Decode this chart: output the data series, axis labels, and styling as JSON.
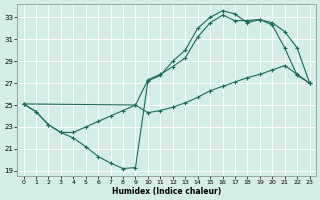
{
  "xlabel": "Humidex (Indice chaleur)",
  "bg_color": "#d4ede6",
  "line_color": "#1a6b5a",
  "xlim": [
    -0.5,
    23.5
  ],
  "ylim": [
    18.5,
    34.2
  ],
  "yticks": [
    19,
    21,
    23,
    25,
    27,
    29,
    31,
    33
  ],
  "xticks": [
    0,
    1,
    2,
    3,
    4,
    5,
    6,
    7,
    8,
    9,
    10,
    11,
    12,
    13,
    14,
    15,
    16,
    17,
    18,
    19,
    20,
    21,
    22,
    23
  ],
  "line1_x": [
    0,
    1,
    2,
    3,
    4,
    5,
    6,
    7,
    8,
    9,
    10,
    11,
    12,
    13,
    14,
    15,
    16,
    17,
    18,
    19,
    20,
    21,
    22,
    23
  ],
  "line1_y": [
    25.1,
    24.4,
    23.2,
    22.5,
    22.0,
    21.2,
    20.3,
    19.7,
    19.2,
    19.3,
    27.2,
    27.7,
    29.0,
    30.0,
    32.0,
    33.0,
    33.6,
    33.3,
    32.5,
    32.8,
    32.3,
    30.2,
    27.7,
    27.0
  ],
  "line2_x": [
    0,
    9,
    10,
    11,
    12,
    13,
    14,
    15,
    16,
    17,
    18,
    19,
    20,
    21,
    22,
    23
  ],
  "line2_y": [
    25.1,
    25.0,
    27.3,
    27.8,
    28.5,
    29.3,
    31.2,
    32.5,
    33.2,
    32.7,
    32.7,
    32.8,
    32.5,
    31.7,
    30.2,
    27.0
  ],
  "line3_x": [
    0,
    1,
    2,
    3,
    4,
    5,
    6,
    7,
    8,
    9,
    10,
    11,
    12,
    13,
    14,
    15,
    16,
    17,
    18,
    19,
    20,
    21,
    22,
    23
  ],
  "line3_y": [
    25.1,
    24.4,
    23.2,
    22.5,
    22.5,
    23.0,
    23.5,
    24.0,
    24.5,
    25.0,
    24.3,
    24.5,
    24.8,
    25.2,
    25.7,
    26.3,
    26.7,
    27.1,
    27.5,
    27.8,
    28.2,
    28.6,
    27.8,
    27.0
  ]
}
